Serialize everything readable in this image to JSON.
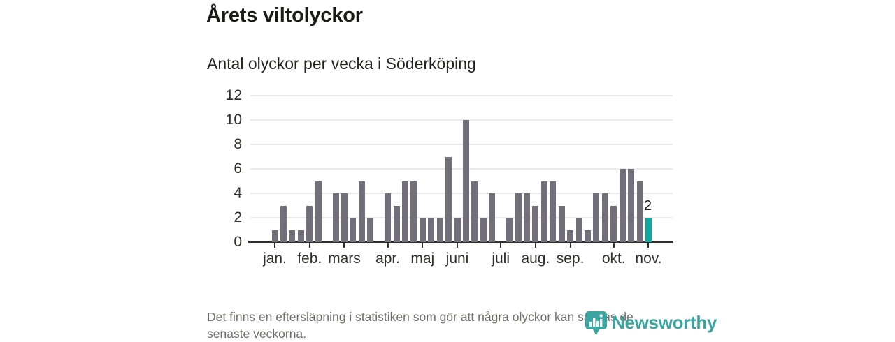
{
  "header": {
    "title": "Årets viltolyckor",
    "subtitle": "Antal olyckor per vecka i Söderköping"
  },
  "chart_data": {
    "type": "bar",
    "title": "Årets viltolyckor",
    "subtitle": "Antal olyckor per vecka i Söderköping",
    "x_description": "weeks of the year, week 1 (jan) through week 44 (nov)",
    "values": [
      1,
      3,
      1,
      1,
      3,
      5,
      0,
      4,
      4,
      2,
      5,
      2,
      0,
      4,
      3,
      5,
      5,
      2,
      2,
      2,
      7,
      2,
      10,
      5,
      2,
      4,
      0,
      2,
      4,
      4,
      3,
      5,
      5,
      3,
      1,
      2,
      1,
      4,
      4,
      3,
      6,
      6,
      5,
      2
    ],
    "month_labels": [
      "jan.",
      "feb.",
      "mars",
      "apr.",
      "maj",
      "juni",
      "juli",
      "aug.",
      "sep.",
      "okt.",
      "nov."
    ],
    "month_tick_weeks": [
      1,
      5,
      9,
      14,
      18,
      22,
      27,
      31,
      35,
      40,
      44
    ],
    "y_ticks": [
      0,
      2,
      4,
      6,
      8,
      10,
      12
    ],
    "ylim": [
      0,
      12
    ],
    "grid": true,
    "legend": "none",
    "bar_color": "#726f7a",
    "highlight": {
      "index": 43,
      "label": "2",
      "color": "#0fa7a0"
    }
  },
  "footer": {
    "line1": "Det finns en eftersläpning i statistiken som gör att några olyckor kan saknas de",
    "line2": "senaste veckorna."
  },
  "logo": {
    "name": "Newsworthy",
    "color": "#3ba5a1"
  },
  "colors": {
    "axis": "#2e2e2e",
    "grid": "#eaeaea",
    "title_text": "#191917",
    "muted_text": "#6e6e6c"
  }
}
